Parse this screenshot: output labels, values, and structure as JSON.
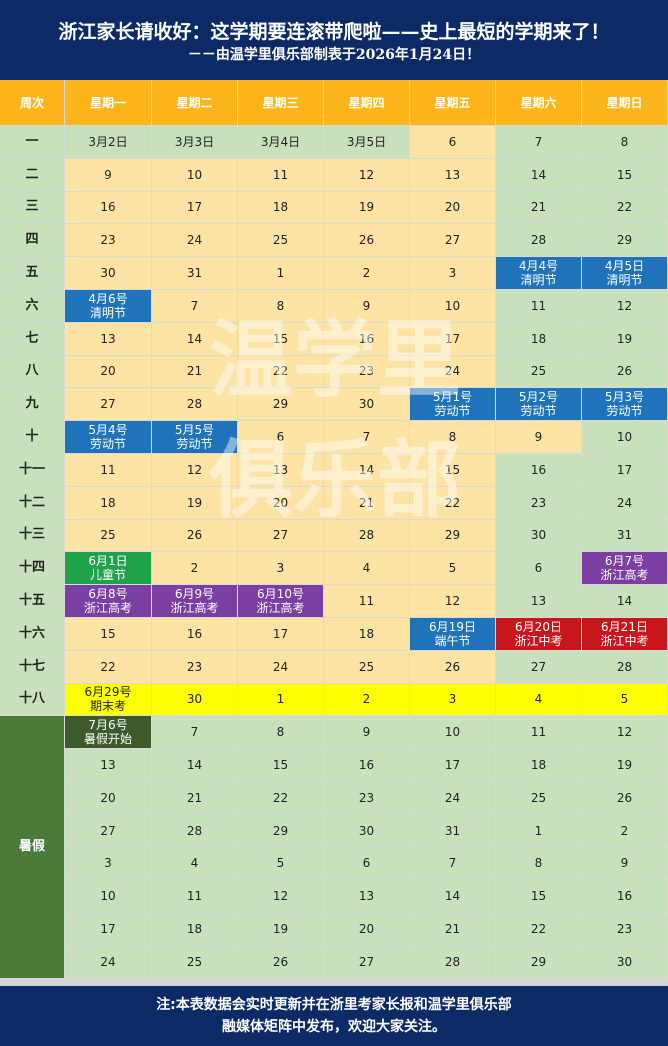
{
  "header": {
    "title": "浙江家长请收好：这学期要连滚带爬啦——史上最短的学期来了！",
    "subtitle": "－－由温学里俱乐部制表于2026年1月24日！"
  },
  "columns": [
    "周次",
    "星期一",
    "星期二",
    "星期三",
    "星期四",
    "星期五",
    "星期六",
    "星期日"
  ],
  "weeks": [
    {
      "label": "一",
      "days": [
        [
          "3月2日",
          ""
        ],
        [
          "3月3日",
          ""
        ],
        [
          "3月4日",
          ""
        ],
        [
          "3月5日",
          ""
        ],
        [
          "6",
          ""
        ],
        [
          "7",
          ""
        ],
        [
          "8",
          ""
        ]
      ],
      "styles": [
        "g",
        "g",
        "g",
        "g",
        "y",
        "g",
        "g"
      ]
    },
    {
      "label": "二",
      "days": [
        [
          "9",
          ""
        ],
        [
          "10",
          ""
        ],
        [
          "11",
          ""
        ],
        [
          "12",
          ""
        ],
        [
          "13",
          ""
        ],
        [
          "14",
          ""
        ],
        [
          "15",
          ""
        ]
      ],
      "styles": [
        "y",
        "y",
        "y",
        "y",
        "y",
        "g",
        "g"
      ]
    },
    {
      "label": "三",
      "days": [
        [
          "16",
          ""
        ],
        [
          "17",
          ""
        ],
        [
          "18",
          ""
        ],
        [
          "19",
          ""
        ],
        [
          "20",
          ""
        ],
        [
          "21",
          ""
        ],
        [
          "22",
          ""
        ]
      ],
      "styles": [
        "y",
        "y",
        "y",
        "y",
        "y",
        "g",
        "g"
      ]
    },
    {
      "label": "四",
      "days": [
        [
          "23",
          ""
        ],
        [
          "24",
          ""
        ],
        [
          "25",
          ""
        ],
        [
          "26",
          ""
        ],
        [
          "27",
          ""
        ],
        [
          "28",
          ""
        ],
        [
          "29",
          ""
        ]
      ],
      "styles": [
        "y",
        "y",
        "y",
        "y",
        "y",
        "g",
        "g"
      ]
    },
    {
      "label": "五",
      "days": [
        [
          "30",
          ""
        ],
        [
          "31",
          ""
        ],
        [
          "1",
          ""
        ],
        [
          "2",
          ""
        ],
        [
          "3",
          ""
        ],
        [
          "4月4号",
          "清明节"
        ],
        [
          "4月5日",
          "清明节"
        ]
      ],
      "styles": [
        "y",
        "y",
        "y",
        "y",
        "y",
        "blue",
        "blue"
      ]
    },
    {
      "label": "六",
      "days": [
        [
          "4月6号",
          "清明节"
        ],
        [
          "7",
          ""
        ],
        [
          "8",
          ""
        ],
        [
          "9",
          ""
        ],
        [
          "10",
          ""
        ],
        [
          "11",
          ""
        ],
        [
          "12",
          ""
        ]
      ],
      "styles": [
        "blue",
        "y",
        "y",
        "y",
        "y",
        "g",
        "g"
      ]
    },
    {
      "label": "七",
      "days": [
        [
          "13",
          ""
        ],
        [
          "14",
          ""
        ],
        [
          "15",
          ""
        ],
        [
          "16",
          ""
        ],
        [
          "17",
          ""
        ],
        [
          "18",
          ""
        ],
        [
          "19",
          ""
        ]
      ],
      "styles": [
        "y",
        "y",
        "y",
        "y",
        "y",
        "g",
        "g"
      ]
    },
    {
      "label": "八",
      "days": [
        [
          "20",
          ""
        ],
        [
          "21",
          ""
        ],
        [
          "22",
          ""
        ],
        [
          "23",
          ""
        ],
        [
          "24",
          ""
        ],
        [
          "25",
          ""
        ],
        [
          "26",
          ""
        ]
      ],
      "styles": [
        "y",
        "y",
        "y",
        "y",
        "y",
        "g",
        "g"
      ]
    },
    {
      "label": "九",
      "days": [
        [
          "27",
          ""
        ],
        [
          "28",
          ""
        ],
        [
          "29",
          ""
        ],
        [
          "30",
          ""
        ],
        [
          "5月1号",
          "劳动节"
        ],
        [
          "5月2号",
          "劳动节"
        ],
        [
          "5月3号",
          "劳动节"
        ]
      ],
      "styles": [
        "y",
        "y",
        "y",
        "y",
        "blue",
        "blue",
        "blue"
      ]
    },
    {
      "label": "十",
      "days": [
        [
          "5月4号",
          "劳动节"
        ],
        [
          "5月5号",
          "劳动节"
        ],
        [
          "6",
          ""
        ],
        [
          "7",
          ""
        ],
        [
          "8",
          ""
        ],
        [
          "9",
          ""
        ],
        [
          "10",
          ""
        ]
      ],
      "styles": [
        "blue",
        "blue",
        "y",
        "y",
        "y",
        "y",
        "g"
      ]
    },
    {
      "label": "十一",
      "days": [
        [
          "11",
          ""
        ],
        [
          "12",
          ""
        ],
        [
          "13",
          ""
        ],
        [
          "14",
          ""
        ],
        [
          "15",
          ""
        ],
        [
          "16",
          ""
        ],
        [
          "17",
          ""
        ]
      ],
      "styles": [
        "y",
        "y",
        "y",
        "y",
        "y",
        "g",
        "g"
      ]
    },
    {
      "label": "十二",
      "days": [
        [
          "18",
          ""
        ],
        [
          "19",
          ""
        ],
        [
          "20",
          ""
        ],
        [
          "21",
          ""
        ],
        [
          "22",
          ""
        ],
        [
          "23",
          ""
        ],
        [
          "24",
          ""
        ]
      ],
      "styles": [
        "y",
        "y",
        "y",
        "y",
        "y",
        "g",
        "g"
      ]
    },
    {
      "label": "十三",
      "days": [
        [
          "25",
          ""
        ],
        [
          "26",
          ""
        ],
        [
          "27",
          ""
        ],
        [
          "28",
          ""
        ],
        [
          "29",
          ""
        ],
        [
          "30",
          ""
        ],
        [
          "31",
          ""
        ]
      ],
      "styles": [
        "y",
        "y",
        "y",
        "y",
        "y",
        "g",
        "g"
      ]
    },
    {
      "label": "十四",
      "days": [
        [
          "6月1日",
          "儿童节"
        ],
        [
          "2",
          ""
        ],
        [
          "3",
          ""
        ],
        [
          "4",
          ""
        ],
        [
          "5",
          ""
        ],
        [
          "6",
          ""
        ],
        [
          "6月7号",
          "浙江高考"
        ]
      ],
      "styles": [
        "green",
        "y",
        "y",
        "y",
        "y",
        "g",
        "purple"
      ]
    },
    {
      "label": "十五",
      "days": [
        [
          "6月8号",
          "浙江高考"
        ],
        [
          "6月9号",
          "浙江高考"
        ],
        [
          "6月10号",
          "浙江高考"
        ],
        [
          "11",
          ""
        ],
        [
          "12",
          ""
        ],
        [
          "13",
          ""
        ],
        [
          "14",
          ""
        ]
      ],
      "styles": [
        "purple",
        "purple",
        "purple",
        "y",
        "y",
        "g",
        "g"
      ]
    },
    {
      "label": "十六",
      "days": [
        [
          "15",
          ""
        ],
        [
          "16",
          ""
        ],
        [
          "17",
          ""
        ],
        [
          "18",
          ""
        ],
        [
          "6月19日",
          "端午节"
        ],
        [
          "6月20日",
          "浙江中考"
        ],
        [
          "6月21日",
          "浙江中考"
        ]
      ],
      "styles": [
        "y",
        "y",
        "y",
        "y",
        "blue",
        "red",
        "red"
      ]
    },
    {
      "label": "十七",
      "days": [
        [
          "22",
          ""
        ],
        [
          "23",
          ""
        ],
        [
          "24",
          ""
        ],
        [
          "25",
          ""
        ],
        [
          "26",
          ""
        ],
        [
          "27",
          ""
        ],
        [
          "28",
          ""
        ]
      ],
      "styles": [
        "y",
        "y",
        "y",
        "y",
        "y",
        "g",
        "g"
      ]
    },
    {
      "label": "十八",
      "days": [
        [
          "6月29号",
          "期末考"
        ],
        [
          "30",
          ""
        ],
        [
          "1",
          ""
        ],
        [
          "2",
          ""
        ],
        [
          "3",
          ""
        ],
        [
          "4",
          ""
        ],
        [
          "5",
          ""
        ]
      ],
      "styles": [
        "y2",
        "y2",
        "y2",
        "y2",
        "y2",
        "y2",
        "y2"
      ]
    }
  ],
  "summer": {
    "label": "暑假",
    "rows": [
      [
        [
          "7月6号",
          "暑假开始"
        ],
        [
          "7",
          ""
        ],
        [
          "8",
          ""
        ],
        [
          "9",
          ""
        ],
        [
          "10",
          ""
        ],
        [
          "11",
          ""
        ],
        [
          "12",
          ""
        ]
      ],
      [
        [
          "13",
          ""
        ],
        [
          "14",
          ""
        ],
        [
          "15",
          ""
        ],
        [
          "16",
          ""
        ],
        [
          "17",
          ""
        ],
        [
          "18",
          ""
        ],
        [
          "19",
          ""
        ]
      ],
      [
        [
          "20",
          ""
        ],
        [
          "21",
          ""
        ],
        [
          "22",
          ""
        ],
        [
          "23",
          ""
        ],
        [
          "24",
          ""
        ],
        [
          "25",
          ""
        ],
        [
          "26",
          ""
        ]
      ],
      [
        [
          "27",
          ""
        ],
        [
          "28",
          ""
        ],
        [
          "29",
          ""
        ],
        [
          "30",
          ""
        ],
        [
          "31",
          ""
        ],
        [
          "1",
          ""
        ],
        [
          "2",
          ""
        ]
      ],
      [
        [
          "3",
          ""
        ],
        [
          "4",
          ""
        ],
        [
          "5",
          ""
        ],
        [
          "6",
          ""
        ],
        [
          "7",
          ""
        ],
        [
          "8",
          ""
        ],
        [
          "9",
          ""
        ]
      ],
      [
        [
          "10",
          ""
        ],
        [
          "11",
          ""
        ],
        [
          "12",
          ""
        ],
        [
          "13",
          ""
        ],
        [
          "14",
          ""
        ],
        [
          "15",
          ""
        ],
        [
          "16",
          ""
        ]
      ],
      [
        [
          "17",
          ""
        ],
        [
          "18",
          ""
        ],
        [
          "19",
          ""
        ],
        [
          "20",
          ""
        ],
        [
          "21",
          ""
        ],
        [
          "22",
          ""
        ],
        [
          "23",
          ""
        ]
      ],
      [
        [
          "24",
          ""
        ],
        [
          "25",
          ""
        ],
        [
          "26",
          ""
        ],
        [
          "27",
          ""
        ],
        [
          "28",
          ""
        ],
        [
          "29",
          ""
        ],
        [
          "30",
          ""
        ]
      ]
    ]
  },
  "watermark": {
    "line1": "温学里",
    "line2": "俱乐部"
  },
  "footer": {
    "line1": "注:本表数据会实时更新并在浙里考家长报和温学里俱乐部",
    "line2": "融媒体矩阵中发布，欢迎大家关注。"
  },
  "colors": {
    "header_bg": "#0c2a66",
    "column_header_bg": "#fdb51b",
    "weekday_cell": "#fde3a4",
    "weekend_cell": "#c9e0bd",
    "holiday_blue": "#1f73bb",
    "exam_purple": "#7b3fa3",
    "childrens_day_green": "#1fa34a",
    "zhongkao_red": "#c8161d",
    "final_exam_yellow": "#ffff00"
  }
}
